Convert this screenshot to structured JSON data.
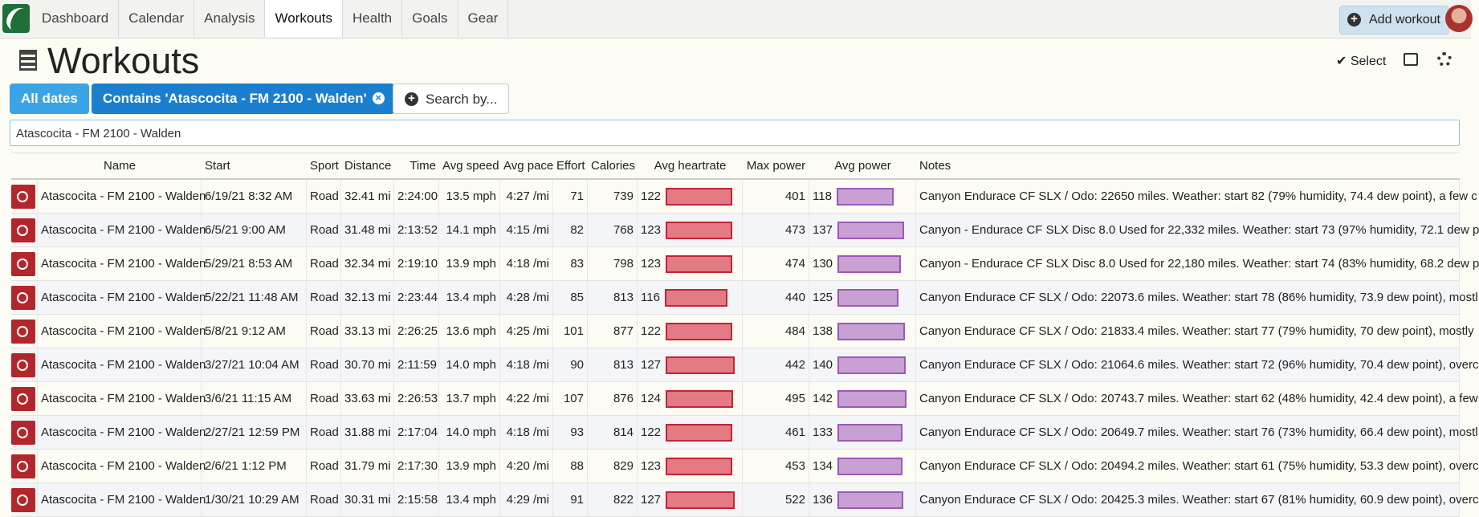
{
  "nav": {
    "tabs": [
      "Dashboard",
      "Calendar",
      "Analysis",
      "Workouts",
      "Health",
      "Goals",
      "Gear"
    ],
    "active": 3,
    "add_button": "Add workout"
  },
  "header": {
    "title": "Workouts",
    "select": "✔ Select"
  },
  "filters": {
    "dates": "All dates",
    "contains": "Contains 'Atascocita - FM 2100 - Walden'",
    "search_by": "Search by..."
  },
  "search": "Atascocita - FM 2100 - Walden",
  "table": {
    "columns": [
      "Name",
      "Start",
      "Sport",
      "Distance",
      "Time",
      "Avg speed",
      "Avg pace",
      "Effort",
      "Calories",
      "Avg heartrate",
      "Max power",
      "Avg power",
      "Notes"
    ],
    "rows": [
      [
        "Atascocita - FM 2100 - Walden",
        "6/19/21 8:32 AM",
        "Road",
        "32.41 mi",
        "2:24:00",
        "13.5 mph",
        "4:27 /mi",
        71,
        739,
        122,
        401,
        118,
        "Canyon Endurace CF SLX / Odo: 22650 miles. Weather: start 82 (79% humidity, 74.4 dew point), a few c"
      ],
      [
        "Atascocita - FM 2100 - Walden",
        "6/5/21 9:00 AM",
        "Road",
        "31.48 mi",
        "2:13:52",
        "14.1 mph",
        "4:15 /mi",
        82,
        768,
        123,
        473,
        137,
        "Canyon - Endurace CF SLX Disc 8.0 Used for 22,332 miles. Weather: start 73 (97% humidity, 72.1 dew p"
      ],
      [
        "Atascocita - FM 2100 - Walden",
        "5/29/21 8:53 AM",
        "Road",
        "32.34 mi",
        "2:19:10",
        "13.9 mph",
        "4:18 /mi",
        83,
        798,
        123,
        474,
        130,
        "Canyon - Endurace CF SLX Disc 8.0 Used for 22,180 miles. Weather: start 74 (83% humidity, 68.2 dew p"
      ],
      [
        "Atascocita - FM 2100 - Walden",
        "5/22/21 11:48 AM",
        "Road",
        "32.13 mi",
        "2:23:44",
        "13.4 mph",
        "4:28 /mi",
        85,
        813,
        116,
        440,
        125,
        "Canyon Endurace CF SLX / Odo: 22073.6 miles. Weather: start 78 (86% humidity, 73.9 dew point), mostl"
      ],
      [
        "Atascocita - FM 2100 - Walden",
        "5/8/21 9:12 AM",
        "Road",
        "33.13 mi",
        "2:26:25",
        "13.6 mph",
        "4:25 /mi",
        101,
        877,
        122,
        484,
        138,
        "Canyon Endurace CF SLX / Odo: 21833.4 miles. Weather: start 77 (79% humidity, 70 dew point), mostly"
      ],
      [
        "Atascocita - FM 2100 - Walden",
        "3/27/21 10:04 AM",
        "Road",
        "30.70 mi",
        "2:11:59",
        "14.0 mph",
        "4:18 /mi",
        90,
        813,
        127,
        442,
        140,
        "Canyon Endurace CF SLX / Odo: 21064.6 miles. Weather: start 72 (96% humidity, 70.4 dew point), overc"
      ],
      [
        "Atascocita - FM 2100 - Walden",
        "3/6/21 11:15 AM",
        "Road",
        "33.63 mi",
        "2:26:53",
        "13.7 mph",
        "4:22 /mi",
        107,
        876,
        124,
        495,
        142,
        "Canyon Endurace CF SLX / Odo: 20743.7 miles. Weather: start 62 (48% humidity, 42.4 dew point), a few"
      ],
      [
        "Atascocita - FM 2100 - Walden",
        "2/27/21 12:59 PM",
        "Road",
        "31.88 mi",
        "2:17:04",
        "14.0 mph",
        "4:18 /mi",
        93,
        814,
        122,
        461,
        133,
        "Canyon Endurace CF SLX / Odo: 20649.7 miles. Weather: start 76 (73% humidity, 66.4 dew point), mostl"
      ],
      [
        "Atascocita - FM 2100 - Walden",
        "2/6/21 1:12 PM",
        "Road",
        "31.79 mi",
        "2:17:30",
        "13.9 mph",
        "4:20 /mi",
        88,
        829,
        123,
        453,
        134,
        "Canyon Endurace CF SLX / Odo: 20494.2 miles. Weather: start 61 (75% humidity, 53.3 dew point), overc"
      ],
      [
        "Atascocita - FM 2100 - Walden",
        "1/30/21 10:29 AM",
        "Road",
        "30.31 mi",
        "2:15:58",
        "13.4 mph",
        "4:29 /mi",
        91,
        822,
        127,
        522,
        136,
        "Canyon Endurace CF SLX / Odo: 20425.3 miles. Weather: start 67 (81% humidity, 60.9 dew point), overc"
      ]
    ]
  }
}
